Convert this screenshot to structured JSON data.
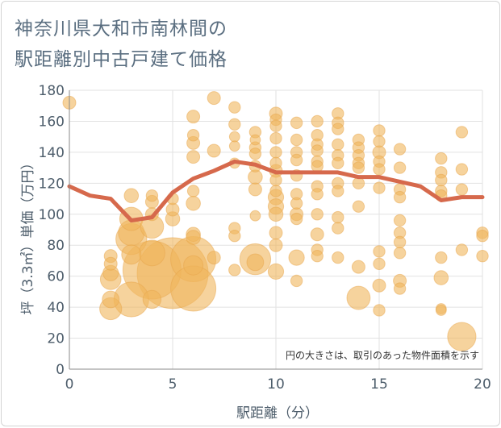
{
  "title": {
    "line1": "神奈川県大和市南林間の",
    "line2": "駅距離別中古戸建て価格"
  },
  "colors": {
    "bubble": "#f0b55b",
    "bubble_stroke": "#e8a64b",
    "line": "#d6694c",
    "grid": "#e2e2e2",
    "axis": "#888888"
  },
  "chart_data": {
    "type": "scatter",
    "title": "神奈川県大和市南林間の駅距離別中古戸建て価格",
    "xlabel": "駅距離（分）",
    "ylabel": "坪（3.3㎡）単価（万円）",
    "xlim": [
      0,
      20
    ],
    "ylim": [
      0,
      180
    ],
    "xticks": [
      "0",
      "5",
      "10",
      "15",
      "20"
    ],
    "yticks": [
      "0",
      "20",
      "40",
      "60",
      "80",
      "100",
      "120",
      "140",
      "160",
      "180"
    ],
    "grid": true,
    "note": "円の大きさは、取引のあった物件面積を示す",
    "series": [
      {
        "type": "bubble",
        "points": [
          {
            "x": 0,
            "y": 172,
            "s": 1
          },
          {
            "x": 2,
            "y": 73,
            "s": 1
          },
          {
            "x": 2,
            "y": 68,
            "s": 1
          },
          {
            "x": 2,
            "y": 62,
            "s": 1.2
          },
          {
            "x": 2,
            "y": 58,
            "s": 1.6
          },
          {
            "x": 2,
            "y": 45,
            "s": 1.3
          },
          {
            "x": 2,
            "y": 39,
            "s": 1.7
          },
          {
            "x": 3,
            "y": 112,
            "s": 1.1
          },
          {
            "x": 3,
            "y": 97,
            "s": 1.8
          },
          {
            "x": 3,
            "y": 88,
            "s": 2
          },
          {
            "x": 3,
            "y": 84,
            "s": 2.4
          },
          {
            "x": 3,
            "y": 74,
            "s": 1.5
          },
          {
            "x": 3,
            "y": 45,
            "s": 2.7
          },
          {
            "x": 4,
            "y": 112,
            "s": 0.9
          },
          {
            "x": 4,
            "y": 108,
            "s": 1
          },
          {
            "x": 4,
            "y": 100,
            "s": 1
          },
          {
            "x": 4,
            "y": 92,
            "s": 1.8
          },
          {
            "x": 4,
            "y": 75,
            "s": 2
          },
          {
            "x": 4,
            "y": 64,
            "s": 4.5
          },
          {
            "x": 4,
            "y": 45,
            "s": 1.4
          },
          {
            "x": 5,
            "y": 110,
            "s": 0.9
          },
          {
            "x": 5,
            "y": 103,
            "s": 1
          },
          {
            "x": 5,
            "y": 97,
            "s": 1.1
          },
          {
            "x": 5,
            "y": 62,
            "s": 5.5
          },
          {
            "x": 6,
            "y": 163,
            "s": 1
          },
          {
            "x": 6,
            "y": 151,
            "s": 0.9
          },
          {
            "x": 6,
            "y": 146,
            "s": 1
          },
          {
            "x": 6,
            "y": 137,
            "s": 1
          },
          {
            "x": 6,
            "y": 115,
            "s": 0.9
          },
          {
            "x": 6,
            "y": 107,
            "s": 1.1
          },
          {
            "x": 6,
            "y": 87,
            "s": 1.1
          },
          {
            "x": 6,
            "y": 85,
            "s": 1.1
          },
          {
            "x": 6,
            "y": 71,
            "s": 3.5
          },
          {
            "x": 6,
            "y": 67,
            "s": 1.5
          },
          {
            "x": 6,
            "y": 52,
            "s": 3.5
          },
          {
            "x": 7,
            "y": 175,
            "s": 1
          },
          {
            "x": 7,
            "y": 141,
            "s": 1
          },
          {
            "x": 7,
            "y": 72,
            "s": 1
          },
          {
            "x": 8,
            "y": 169,
            "s": 0.9
          },
          {
            "x": 8,
            "y": 158,
            "s": 0.9
          },
          {
            "x": 8,
            "y": 150,
            "s": 0.8
          },
          {
            "x": 8,
            "y": 144,
            "s": 0.8
          },
          {
            "x": 8,
            "y": 133,
            "s": 0.8
          },
          {
            "x": 8,
            "y": 91,
            "s": 0.9
          },
          {
            "x": 8,
            "y": 86,
            "s": 0.9
          },
          {
            "x": 8,
            "y": 64,
            "s": 0.9
          },
          {
            "x": 9,
            "y": 153,
            "s": 0.9
          },
          {
            "x": 9,
            "y": 148,
            "s": 0.8
          },
          {
            "x": 9,
            "y": 143,
            "s": 0.9
          },
          {
            "x": 9,
            "y": 139,
            "s": 0.9
          },
          {
            "x": 9,
            "y": 131,
            "s": 0.9
          },
          {
            "x": 9,
            "y": 124,
            "s": 1.1
          },
          {
            "x": 9,
            "y": 116,
            "s": 1
          },
          {
            "x": 9,
            "y": 99,
            "s": 0.8
          },
          {
            "x": 9,
            "y": 71,
            "s": 2.4
          },
          {
            "x": 9,
            "y": 69,
            "s": 1.3
          },
          {
            "x": 10,
            "y": 165,
            "s": 1
          },
          {
            "x": 10,
            "y": 161,
            "s": 0.9
          },
          {
            "x": 10,
            "y": 157,
            "s": 0.9
          },
          {
            "x": 10,
            "y": 149,
            "s": 0.9
          },
          {
            "x": 10,
            "y": 140,
            "s": 0.9
          },
          {
            "x": 10,
            "y": 133,
            "s": 0.9
          },
          {
            "x": 10,
            "y": 128,
            "s": 1
          },
          {
            "x": 10,
            "y": 122,
            "s": 0.9
          },
          {
            "x": 10,
            "y": 115,
            "s": 0.9
          },
          {
            "x": 10,
            "y": 111,
            "s": 1.2
          },
          {
            "x": 10,
            "y": 105,
            "s": 1.2
          },
          {
            "x": 10,
            "y": 100,
            "s": 1.1
          },
          {
            "x": 10,
            "y": 88,
            "s": 1
          },
          {
            "x": 10,
            "y": 80,
            "s": 1
          },
          {
            "x": 10,
            "y": 63,
            "s": 1.2
          },
          {
            "x": 11,
            "y": 159,
            "s": 0.9
          },
          {
            "x": 11,
            "y": 148,
            "s": 0.9
          },
          {
            "x": 11,
            "y": 140,
            "s": 0.9
          },
          {
            "x": 11,
            "y": 135,
            "s": 0.9
          },
          {
            "x": 11,
            "y": 125,
            "s": 0.9
          },
          {
            "x": 11,
            "y": 113,
            "s": 0.9
          },
          {
            "x": 11,
            "y": 107,
            "s": 0.9
          },
          {
            "x": 11,
            "y": 100,
            "s": 1
          },
          {
            "x": 11,
            "y": 97,
            "s": 0.9
          },
          {
            "x": 11,
            "y": 72,
            "s": 1.2
          },
          {
            "x": 11,
            "y": 57,
            "s": 0.9
          },
          {
            "x": 12,
            "y": 160,
            "s": 0.9
          },
          {
            "x": 12,
            "y": 151,
            "s": 0.9
          },
          {
            "x": 12,
            "y": 145,
            "s": 0.9
          },
          {
            "x": 12,
            "y": 141,
            "s": 0.9
          },
          {
            "x": 12,
            "y": 134,
            "s": 0.9
          },
          {
            "x": 12,
            "y": 131,
            "s": 0.9
          },
          {
            "x": 12,
            "y": 118,
            "s": 0.9
          },
          {
            "x": 12,
            "y": 113,
            "s": 0.9
          },
          {
            "x": 12,
            "y": 100,
            "s": 0.9
          },
          {
            "x": 12,
            "y": 87,
            "s": 1
          },
          {
            "x": 12,
            "y": 77,
            "s": 0.9
          },
          {
            "x": 12,
            "y": 73,
            "s": 0.9
          },
          {
            "x": 13,
            "y": 165,
            "s": 0.9
          },
          {
            "x": 13,
            "y": 159,
            "s": 0.9
          },
          {
            "x": 13,
            "y": 155,
            "s": 0.9
          },
          {
            "x": 13,
            "y": 145,
            "s": 0.9
          },
          {
            "x": 13,
            "y": 138,
            "s": 0.9
          },
          {
            "x": 13,
            "y": 133,
            "s": 0.9
          },
          {
            "x": 13,
            "y": 120,
            "s": 0.9
          },
          {
            "x": 13,
            "y": 115,
            "s": 0.9
          },
          {
            "x": 13,
            "y": 98,
            "s": 0.9
          },
          {
            "x": 13,
            "y": 91,
            "s": 0.9
          },
          {
            "x": 13,
            "y": 72,
            "s": 0.9
          },
          {
            "x": 14,
            "y": 148,
            "s": 0.9
          },
          {
            "x": 14,
            "y": 143,
            "s": 0.9
          },
          {
            "x": 14,
            "y": 138,
            "s": 0.9
          },
          {
            "x": 14,
            "y": 133,
            "s": 0.9
          },
          {
            "x": 14,
            "y": 130,
            "s": 0.9
          },
          {
            "x": 14,
            "y": 120,
            "s": 0.9
          },
          {
            "x": 14,
            "y": 105,
            "s": 0.9
          },
          {
            "x": 14,
            "y": 66,
            "s": 1
          },
          {
            "x": 14,
            "y": 46,
            "s": 1.8
          },
          {
            "x": 15,
            "y": 154,
            "s": 0.9
          },
          {
            "x": 15,
            "y": 147,
            "s": 0.9
          },
          {
            "x": 15,
            "y": 140,
            "s": 1
          },
          {
            "x": 15,
            "y": 134,
            "s": 0.9
          },
          {
            "x": 15,
            "y": 129,
            "s": 0.9
          },
          {
            "x": 15,
            "y": 117,
            "s": 0.9
          },
          {
            "x": 15,
            "y": 76,
            "s": 0.9
          },
          {
            "x": 15,
            "y": 68,
            "s": 0.9
          },
          {
            "x": 15,
            "y": 54,
            "s": 1
          },
          {
            "x": 15,
            "y": 38,
            "s": 0.9
          },
          {
            "x": 16,
            "y": 142,
            "s": 0.9
          },
          {
            "x": 16,
            "y": 130,
            "s": 0.9
          },
          {
            "x": 16,
            "y": 116,
            "s": 0.9
          },
          {
            "x": 16,
            "y": 111,
            "s": 0.9
          },
          {
            "x": 16,
            "y": 96,
            "s": 0.9
          },
          {
            "x": 16,
            "y": 88,
            "s": 0.9
          },
          {
            "x": 16,
            "y": 82,
            "s": 0.9
          },
          {
            "x": 16,
            "y": 75,
            "s": 0.9
          },
          {
            "x": 16,
            "y": 57,
            "s": 1
          },
          {
            "x": 16,
            "y": 52,
            "s": 0.9
          },
          {
            "x": 18,
            "y": 136,
            "s": 0.9
          },
          {
            "x": 18,
            "y": 127,
            "s": 0.9
          },
          {
            "x": 18,
            "y": 122,
            "s": 0.9
          },
          {
            "x": 18,
            "y": 115,
            "s": 0.9
          },
          {
            "x": 18,
            "y": 112,
            "s": 0.9
          },
          {
            "x": 18,
            "y": 72,
            "s": 0.9
          },
          {
            "x": 18,
            "y": 59,
            "s": 1.1
          },
          {
            "x": 18,
            "y": 39,
            "s": 0.8
          },
          {
            "x": 18,
            "y": 38,
            "s": 0.8
          },
          {
            "x": 19,
            "y": 153,
            "s": 0.9
          },
          {
            "x": 19,
            "y": 129,
            "s": 0.9
          },
          {
            "x": 19,
            "y": 116,
            "s": 0.9
          },
          {
            "x": 19,
            "y": 77,
            "s": 0.9
          },
          {
            "x": 19,
            "y": 21,
            "s": 2.2
          },
          {
            "x": 20,
            "y": 88,
            "s": 0.9
          },
          {
            "x": 20,
            "y": 86,
            "s": 0.9
          },
          {
            "x": 20,
            "y": 73,
            "s": 0.9
          }
        ]
      },
      {
        "type": "line",
        "x": [
          0,
          1,
          2,
          3,
          4,
          5,
          6,
          7,
          8,
          9,
          10,
          11,
          12,
          13,
          14,
          15,
          16,
          17,
          18,
          19,
          20
        ],
        "y": [
          118,
          112,
          110,
          96,
          98,
          114,
          123,
          128,
          134,
          132,
          127,
          127,
          127,
          127,
          124,
          124,
          121,
          118,
          109,
          111,
          111
        ]
      }
    ]
  }
}
